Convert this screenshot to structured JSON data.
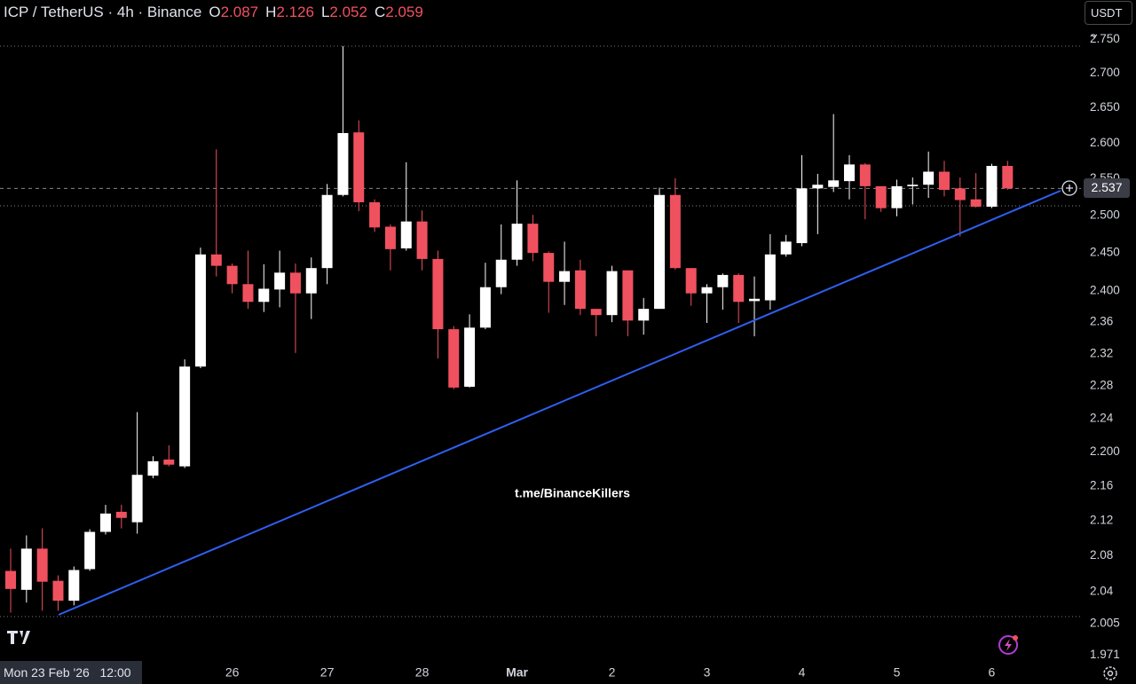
{
  "chart_data": {
    "type": "candlestick",
    "title": "ICP / TetherUS · 4h · Binance",
    "ohlc_readout": [
      {
        "label": "O",
        "value": "2.087"
      },
      {
        "label": "H",
        "value": "2.126"
      },
      {
        "label": "L",
        "value": "2.052"
      },
      {
        "label": "C",
        "value": "2.059"
      }
    ],
    "currency": "USDT",
    "watermark": "t.me/BinanceKillers",
    "crosshair_label": "Mon 23 Feb '26   12:00",
    "categories": [
      null,
      null,
      null,
      null,
      null,
      null,
      null,
      null,
      null,
      null,
      null,
      null,
      null,
      null,
      "26",
      null,
      null,
      null,
      null,
      null,
      "27",
      null,
      null,
      null,
      null,
      null,
      "28",
      null,
      null,
      null,
      null,
      null,
      "Mar",
      null,
      null,
      null,
      null,
      null,
      "2",
      null,
      null,
      null,
      null,
      null,
      "3",
      null,
      null,
      null,
      null,
      null,
      "4",
      null,
      null,
      null,
      null,
      null,
      "5",
      null,
      null,
      null,
      null,
      null,
      "6",
      null
    ],
    "open": [
      2.063,
      2.042,
      2.088,
      2.052,
      2.03,
      2.065,
      2.107,
      2.13,
      2.118,
      2.172,
      2.191,
      2.183,
      2.304,
      2.448,
      2.433,
      2.409,
      2.386,
      2.402,
      2.424,
      2.397,
      2.43,
      2.528,
      2.615,
      2.518,
      2.485,
      2.456,
      2.492,
      2.442,
      2.351,
      2.279,
      2.353,
      2.405,
      2.441,
      2.489,
      2.45,
      2.412,
      2.427,
      2.377,
      2.369,
      2.427,
      2.362,
      2.377,
      2.528,
      2.43,
      2.397,
      2.405,
      2.421,
      2.387,
      2.388,
      2.448,
      2.463,
      2.537,
      2.539,
      2.547,
      2.57,
      2.54,
      2.51,
      2.54,
      2.542,
      2.56,
      2.537,
      2.522,
      2.512,
      2.568
    ],
    "high": [
      2.088,
      2.103,
      2.111,
      2.058,
      2.068,
      2.11,
      2.138,
      2.138,
      2.248,
      2.195,
      2.208,
      2.313,
      2.457,
      2.591,
      2.436,
      2.453,
      2.435,
      2.453,
      2.436,
      2.444,
      2.543,
      2.74,
      2.632,
      2.522,
      2.488,
      2.573,
      2.507,
      2.453,
      2.355,
      2.37,
      2.437,
      2.488,
      2.548,
      2.501,
      2.452,
      2.465,
      2.441,
      2.377,
      2.433,
      2.427,
      2.391,
      2.538,
      2.551,
      2.43,
      2.409,
      2.423,
      2.423,
      2.419,
      2.475,
      2.474,
      2.583,
      2.557,
      2.641,
      2.583,
      2.572,
      2.54,
      2.549,
      2.552,
      2.588,
      2.575,
      2.552,
      2.558,
      2.571,
      2.575
    ],
    "low": [
      2.017,
      2.028,
      2.019,
      2.019,
      2.025,
      2.063,
      2.104,
      2.111,
      2.105,
      2.169,
      2.183,
      2.181,
      2.302,
      2.419,
      2.397,
      2.377,
      2.373,
      2.379,
      2.321,
      2.364,
      2.409,
      2.526,
      2.506,
      2.478,
      2.427,
      2.453,
      2.427,
      2.314,
      2.276,
      2.278,
      2.351,
      2.396,
      2.433,
      2.439,
      2.372,
      2.382,
      2.369,
      2.342,
      2.36,
      2.342,
      2.344,
      2.377,
      2.428,
      2.381,
      2.359,
      2.376,
      2.359,
      2.342,
      2.376,
      2.445,
      2.459,
      2.475,
      2.532,
      2.522,
      2.495,
      2.505,
      2.499,
      2.515,
      2.524,
      2.526,
      2.472,
      2.511,
      2.51,
      2.535
    ],
    "close": [
      2.043,
      2.088,
      2.051,
      2.03,
      2.064,
      2.107,
      2.128,
      2.123,
      2.173,
      2.189,
      2.185,
      2.304,
      2.448,
      2.433,
      2.409,
      2.386,
      2.403,
      2.424,
      2.397,
      2.43,
      2.528,
      2.614,
      2.518,
      2.484,
      2.455,
      2.492,
      2.442,
      2.351,
      2.278,
      2.353,
      2.405,
      2.441,
      2.489,
      2.45,
      2.412,
      2.426,
      2.377,
      2.369,
      2.426,
      2.362,
      2.377,
      2.528,
      2.43,
      2.397,
      2.405,
      2.421,
      2.386,
      2.39,
      2.448,
      2.465,
      2.537,
      2.542,
      2.548,
      2.57,
      2.54,
      2.51,
      2.54,
      2.542,
      2.56,
      2.535,
      2.521,
      2.512,
      2.568,
      2.537
    ],
    "up_color": "#ffffff",
    "down_color": "#f0515f",
    "last_price": {
      "value": 2.537,
      "label": "2.537"
    },
    "log_scale": true,
    "grid": false,
    "ylim": [
      1.965,
      2.809
    ],
    "yticks": [
      {
        "value": 2.75,
        "label": "2.750"
      },
      {
        "value": 2.7,
        "label": "2.700"
      },
      {
        "value": 2.65,
        "label": "2.650"
      },
      {
        "value": 2.6,
        "label": "2.600"
      },
      {
        "value": 2.55,
        "label": "2.550"
      },
      {
        "value": 2.5,
        "label": "2.500"
      },
      {
        "value": 2.45,
        "label": "2.450"
      },
      {
        "value": 2.4,
        "label": "2.400"
      },
      2.36,
      2.32,
      2.28,
      2.24,
      {
        "value": 2.2,
        "label": "2.200"
      },
      2.16,
      2.12,
      2.08,
      2.04,
      2.005,
      1.971
    ]
  }
}
